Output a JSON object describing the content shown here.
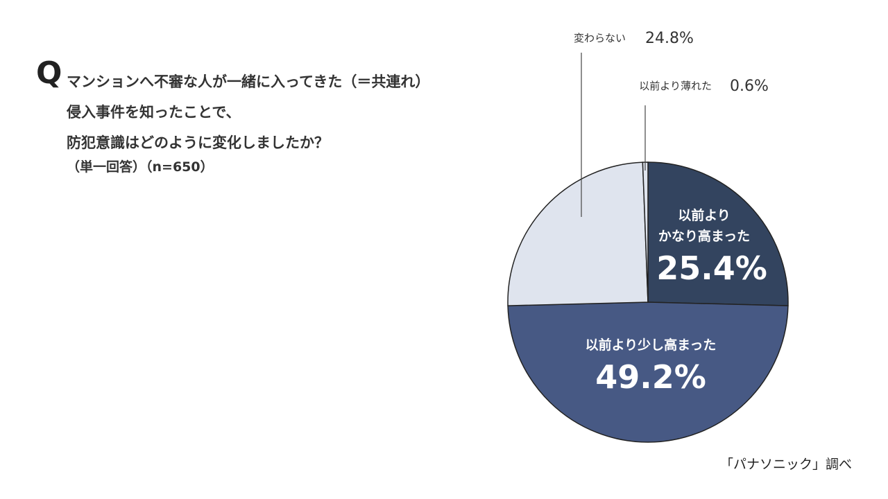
{
  "question": {
    "mark": "Q",
    "lines": [
      "マンションへ不審な人が一緒に入ってきた（＝共連れ）",
      "侵入事件を知ったことで、",
      "防犯意識はどのように変化しましたか？"
    ],
    "note": "（単一回答）（n=650）"
  },
  "source": "「パナソニック」調べ",
  "chart_data": {
    "type": "pie",
    "slices": [
      {
        "label": "以前より\nかなり高まった",
        "value": 25.4,
        "display": "25.4%",
        "color": "#33445f",
        "label_position": "inside"
      },
      {
        "label": "以前より少し高まった",
        "value": 49.2,
        "display": "49.2%",
        "color": "#475984",
        "label_position": "inside"
      },
      {
        "label": "変わらない",
        "value": 24.8,
        "display": "24.8%",
        "color": "#dfe4ee",
        "label_position": "outside"
      },
      {
        "label": "以前より薄れた",
        "value": 0.6,
        "display": "0.6%",
        "color": "#dfe4ee",
        "label_position": "outside"
      }
    ]
  }
}
